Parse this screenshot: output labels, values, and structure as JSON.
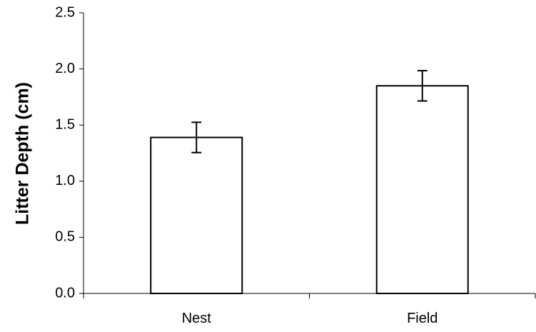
{
  "chart_data": {
    "type": "bar",
    "categories": [
      "Nest",
      "Field"
    ],
    "values": [
      1.39,
      1.85
    ],
    "errors": [
      0.135,
      0.135
    ],
    "title": "",
    "xlabel": "",
    "ylabel": "Litter Depth (cm)",
    "ylim": [
      0,
      2.5
    ],
    "yticks": [
      0.0,
      0.5,
      1.0,
      1.5,
      2.0,
      2.5
    ],
    "ytick_labels": [
      "0.0",
      "0.5",
      "1.0",
      "1.5",
      "2.0",
      "2.5"
    ],
    "grid": false,
    "legend": "none",
    "bar_fill": "#ffffff",
    "bar_stroke": "#000000"
  }
}
